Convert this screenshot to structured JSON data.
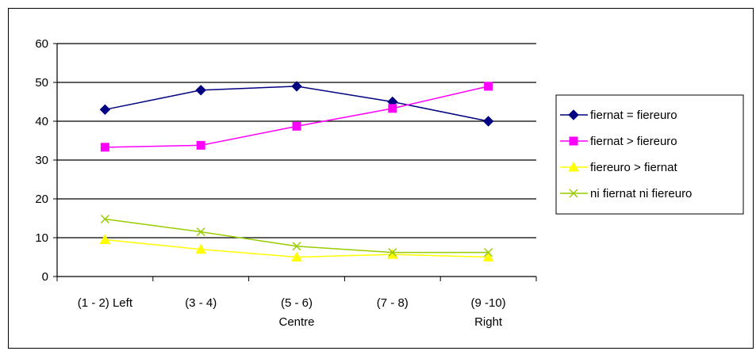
{
  "chart_data": {
    "type": "line",
    "title": "",
    "xlabel": "",
    "ylabel": "",
    "categories": [
      [
        "(1 - 2) Left"
      ],
      [
        "(3 - 4)"
      ],
      [
        "(5 - 6)",
        "Centre"
      ],
      [
        "(7 - 8)"
      ],
      [
        "(9 -10)",
        "Right"
      ]
    ],
    "ylim": [
      0,
      60
    ],
    "yticks": [
      0,
      10,
      20,
      30,
      40,
      50,
      60
    ],
    "grid": true,
    "legend_position": "right",
    "series": [
      {
        "name": "fiernat = fiereuro",
        "values": [
          43,
          48,
          49,
          45,
          40
        ],
        "color": "#000080",
        "marker": "diamond"
      },
      {
        "name": "fiernat > fiereuro",
        "values": [
          33.3,
          33.8,
          38.7,
          43.3,
          49
        ],
        "color": "#FF00FF",
        "marker": "square"
      },
      {
        "name": "fiereuro > fiernat",
        "values": [
          9.5,
          7,
          5,
          5.7,
          5
        ],
        "color": "#FFFF00",
        "marker": "triangle"
      },
      {
        "name": "ni fiernat ni fiereuro",
        "values": [
          14.8,
          11.5,
          7.8,
          6.2,
          6.2
        ],
        "color": "#99CC00",
        "marker": "x"
      }
    ]
  }
}
